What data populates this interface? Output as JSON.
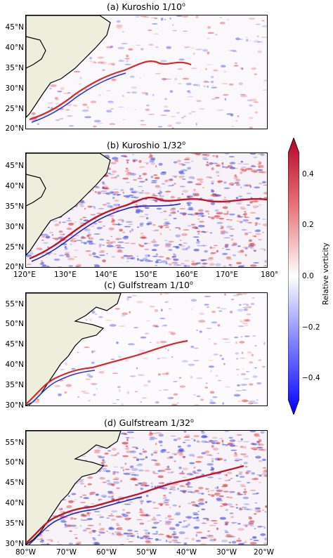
{
  "panels": {
    "a": {
      "title": "(a) Kuroshio 1/10",
      "exp": "o"
    },
    "b": {
      "title": "(b) Kuroshio 1/32",
      "exp": "o"
    },
    "c": {
      "title": "(c) Gulfstream 1/10",
      "exp": "o"
    },
    "d": {
      "title": "(d) Gulfstream 1/32",
      "exp": "o"
    }
  },
  "kuroshio_lat_ticks": [
    "45°N",
    "40°N",
    "35°N",
    "30°N",
    "25°N",
    "20°N"
  ],
  "kuroshio_lon_ticks": [
    "120°E",
    "130°E",
    "140°E",
    "150°E",
    "160°E",
    "170°E",
    "180°"
  ],
  "gulf_lat_ticks": [
    "55°N",
    "50°N",
    "45°N",
    "40°N",
    "35°N",
    "30°N"
  ],
  "gulf_lon_ticks": [
    "80°W",
    "70°W",
    "60°W",
    "50°W",
    "40°W",
    "30°W",
    "20°W"
  ],
  "colorbar": {
    "label": "Relative vorticity",
    "ticks": [
      "0.4",
      "0.2",
      "0.0",
      "−0.2",
      "−0.4"
    ],
    "colors": {
      "high": "#b40426",
      "mid": "#ffffff",
      "low": "#0000ff",
      "land": "#eeeedd"
    }
  }
}
